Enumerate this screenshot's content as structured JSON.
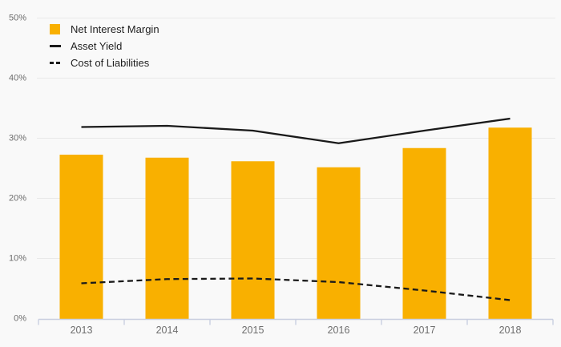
{
  "colors": {
    "background": "#f9f9f9",
    "bar": "#f9b000",
    "line": "#1a1a1a",
    "gridline": "#e9e9e9",
    "axis": "#c9cfe0",
    "axis_label": "#6e6e6e",
    "legend_text": "#1f1f1f"
  },
  "legend": {
    "items": [
      {
        "label": "Net Interest Margin",
        "marker": "bar-swatch"
      },
      {
        "label": "Asset Yield",
        "marker": "solid-line-swatch"
      },
      {
        "label": "Cost of Liabilities",
        "marker": "dashed-line-swatch"
      }
    ]
  },
  "chart_data": {
    "type": "bar",
    "subtype": "bar-line-combo",
    "categories": [
      "2013",
      "2014",
      "2015",
      "2016",
      "2017",
      "2018"
    ],
    "series": [
      {
        "name": "Net Interest Margin",
        "type": "bar",
        "style": "solid",
        "values": [
          27.2,
          26.7,
          26.1,
          25.1,
          28.3,
          31.7
        ]
      },
      {
        "name": "Asset Yield",
        "type": "line",
        "style": "solid",
        "values": [
          31.8,
          32.0,
          31.2,
          29.1,
          31.2,
          33.2
        ]
      },
      {
        "name": "Cost of Liabilities",
        "type": "line",
        "style": "dashed",
        "values": [
          5.8,
          6.5,
          6.6,
          6.0,
          4.6,
          3.0
        ]
      }
    ],
    "title": "",
    "xlabel": "",
    "ylabel": "",
    "ylim": [
      0,
      50
    ],
    "ytick_step": 10,
    "ytick_labels": [
      "0%",
      "10%",
      "20%",
      "30%",
      "40%",
      "50%"
    ],
    "grid": true,
    "legend_position": "top-left"
  }
}
